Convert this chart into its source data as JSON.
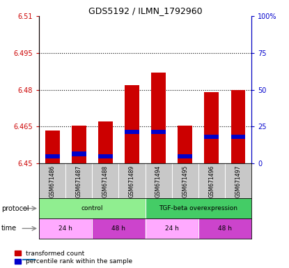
{
  "title": "GDS5192 / ILMN_1792960",
  "samples": [
    "GSM671486",
    "GSM671487",
    "GSM671488",
    "GSM671489",
    "GSM671494",
    "GSM671495",
    "GSM671496",
    "GSM671497"
  ],
  "red_values": [
    6.4635,
    6.4655,
    6.467,
    6.482,
    6.487,
    6.4655,
    6.479,
    6.48
  ],
  "blue_values": [
    6.452,
    6.453,
    6.452,
    6.462,
    6.462,
    6.452,
    6.46,
    6.46
  ],
  "bar_bottom": 6.45,
  "ylim_left": [
    6.45,
    6.51
  ],
  "ylim_right": [
    0,
    100
  ],
  "left_yticks": [
    6.45,
    6.465,
    6.48,
    6.495,
    6.51
  ],
  "right_yticks": [
    0,
    25,
    50,
    75,
    100
  ],
  "right_yticklabels": [
    "0",
    "25",
    "50",
    "75",
    "100%"
  ],
  "red_color": "#cc0000",
  "blue_color": "#0000cc",
  "protocol_groups": [
    {
      "label": "control",
      "start": 0,
      "end": 4,
      "color": "#90ee90"
    },
    {
      "label": "TGF-beta overexpression",
      "start": 4,
      "end": 8,
      "color": "#44cc66"
    }
  ],
  "time_groups": [
    {
      "label": "24 h",
      "start": 0,
      "end": 2,
      "color": "#ffaaff"
    },
    {
      "label": "48 h",
      "start": 2,
      "end": 4,
      "color": "#cc44cc"
    },
    {
      "label": "24 h",
      "start": 4,
      "end": 6,
      "color": "#ffaaff"
    },
    {
      "label": "48 h",
      "start": 6,
      "end": 8,
      "color": "#cc44cc"
    }
  ],
  "bar_width": 0.55,
  "tick_label_color_left": "#cc0000",
  "tick_label_color_right": "#0000cc",
  "sample_bg": "#c8c8c8",
  "legend_items": [
    {
      "color": "#cc0000",
      "label": "transformed count"
    },
    {
      "color": "#0000cc",
      "label": "percentile rank within the sample"
    }
  ]
}
